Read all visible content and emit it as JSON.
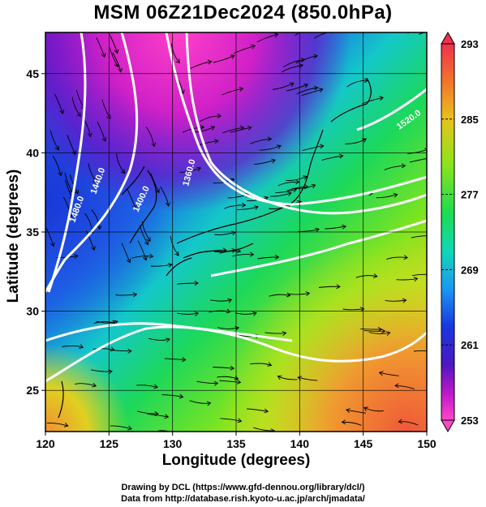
{
  "title": "MSM 06Z21Dec2024 (850.0hPa)",
  "xlabel": "Longitude (degrees)",
  "ylabel": "Latitude  (degrees)",
  "credits": [
    "Drawing by DCL (https://www.gfd-dennou.org/library/dcl/)",
    "Data from http://database.rish.kyoto-u.ac.jp/arch/jmadata/"
  ],
  "chart_data": {
    "type": "heatmap",
    "description_level": "850 hPa temperature (K) shading with geopotential height contours and wind streamlines",
    "x_ticks": [
      120,
      125,
      130,
      135,
      140,
      145,
      150
    ],
    "y_ticks": [
      25,
      30,
      35,
      40,
      45
    ],
    "xlim": [
      120,
      150
    ],
    "ylim": [
      22.4,
      47.6
    ],
    "grid": true,
    "colorbar": {
      "ticks": [
        293,
        285,
        277,
        269,
        261,
        253
      ],
      "range": [
        253,
        293
      ],
      "colors": [
        "#f0304c",
        "#f2742c",
        "#e8c21c",
        "#7be41c",
        "#1cdc50",
        "#10d8b8",
        "#1c98f0",
        "#1838e0",
        "#4c18c0",
        "#c018c8",
        "#ff48c8"
      ]
    },
    "contour_labels": [
      "1480.0",
      "1440.0",
      "1400.0",
      "1360.0",
      "1520.0"
    ],
    "cold_region": "northwest (Siberia/Manchuria)",
    "warm_region": "southeast (Pacific) and southwest (Taiwan)"
  }
}
